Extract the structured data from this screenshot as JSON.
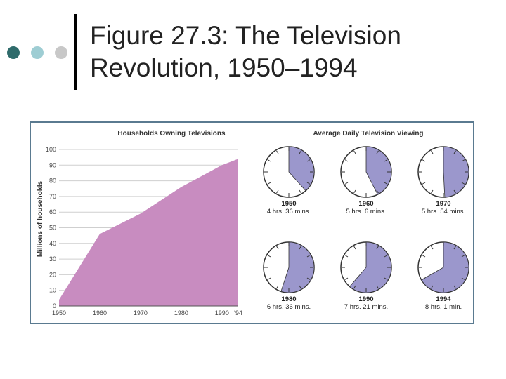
{
  "slide": {
    "title_line1": "Figure 27.3: The Television",
    "title_line2": "Revolution, 1950–1994",
    "bullet_colors": [
      "#2f6b6b",
      "#9ecdd3",
      "#c8c8c8"
    ]
  },
  "chart_data": [
    {
      "type": "area",
      "title": "Households Owning Televisions",
      "ylabel": "Millions of households",
      "xlabel": "",
      "x": [
        1950,
        1960,
        1970,
        1980,
        1990,
        1994
      ],
      "x_tick_labels": [
        "1950",
        "1960",
        "1970",
        "1980",
        "1990",
        "'94"
      ],
      "values": [
        4,
        46,
        59,
        76,
        90,
        94
      ],
      "ylim": [
        0,
        100
      ],
      "y_ticks": [
        0,
        10,
        20,
        30,
        40,
        50,
        60,
        70,
        80,
        90,
        100
      ],
      "grid": true,
      "fill_color": "#c88cc0"
    },
    {
      "type": "pie",
      "title": "Average Daily Television Viewing",
      "slice_color": "#9b97cc",
      "items": [
        {
          "year": "1950",
          "label": "4 hrs. 36 mins.",
          "hours": 4.6
        },
        {
          "year": "1960",
          "label": "5 hrs. 6 mins.",
          "hours": 5.1
        },
        {
          "year": "1970",
          "label": "5 hrs. 54 mins.",
          "hours": 5.9
        },
        {
          "year": "1980",
          "label": "6 hrs. 36 mins.",
          "hours": 6.6
        },
        {
          "year": "1990",
          "label": "7 hrs. 21 mins.",
          "hours": 7.35
        },
        {
          "year": "1994",
          "label": "8 hrs. 1 min.",
          "hours": 8.017
        }
      ]
    }
  ]
}
